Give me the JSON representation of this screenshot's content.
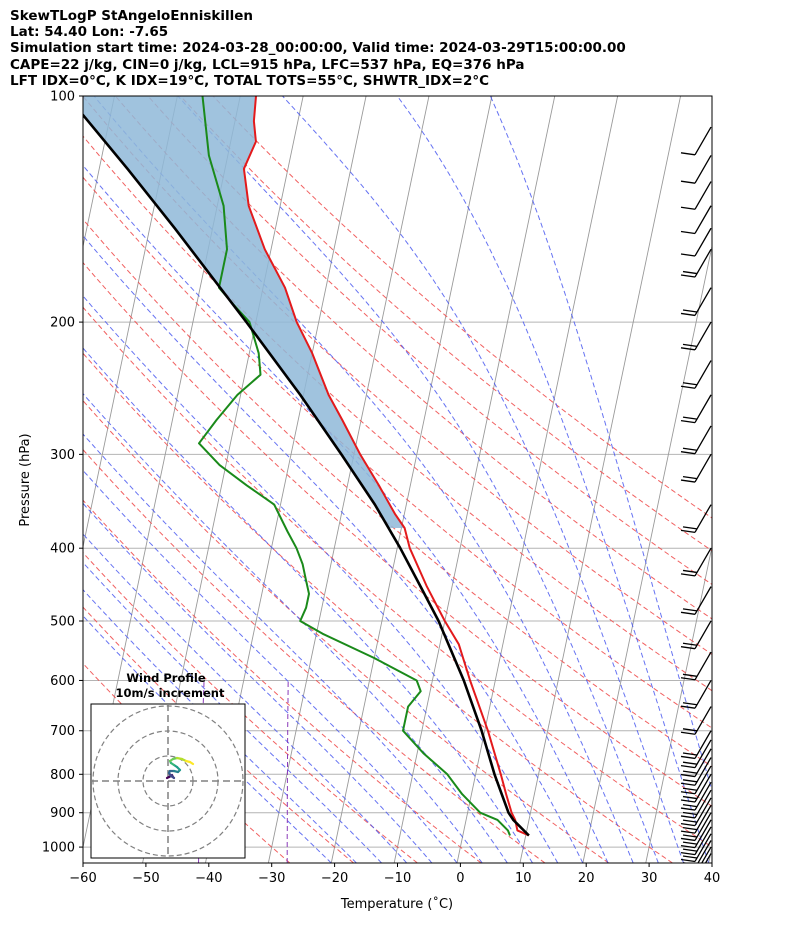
{
  "header": {
    "line1": "SkewTLogP StAngeloEnniskillen",
    "line2": "Lat: 54.40   Lon: -7.65",
    "line3": "Simulation start time: 2024-03-28_00:00:00, Valid time: 2024-03-29T15:00:00.00",
    "line4": "CAPE=22 j/kg, CIN=0 j/kg, LCL=915 hPa, LFC=537 hPa, EQ=376 hPa",
    "line5": "LFT IDX=0°C, K IDX=19°C, TOTAL TOTS=55°C, SHWTR_IDX=2°C"
  },
  "chart_data": {
    "type": "line",
    "chart_kind": "Skew-T log-P diagram",
    "xlabel": "Temperature (˚C)",
    "ylabel": "Pressure (hPa)",
    "xlim": [
      -60,
      40
    ],
    "ylim": [
      1050,
      100
    ],
    "y_scale": "log",
    "skew": true,
    "x_ticks": [
      "−60",
      "−50",
      "−40",
      "−30",
      "−20",
      "−10",
      "0",
      "10",
      "20",
      "30",
      "40"
    ],
    "y_ticks": [
      "100",
      "200",
      "300",
      "400",
      "500",
      "600",
      "700",
      "800",
      "900",
      "1000"
    ],
    "grid": true,
    "colors": {
      "temperature": "#e31a1c",
      "dewpoint": "#1a8a1a",
      "parcel": "#000000",
      "cape_fill": "#8fb9d8",
      "dry_adiabats": "#f05050",
      "moist_adiabats": "#4b5bf0",
      "mixing_ratio": "#8a3ab9",
      "isotherms": "#9a9a9a",
      "isobars": "#b4b4b4"
    },
    "series": [
      {
        "name": "",
        "role": "temperature",
        "pressure": [
          965,
          950,
          920,
          900,
          850,
          800,
          700,
          600,
          537,
          500,
          450,
          400,
          376,
          360,
          330,
          300,
          270,
          250,
          220,
          200,
          180,
          160,
          140,
          125,
          115,
          108,
          100
        ],
        "temperature": [
          10.5,
          8.5,
          7.8,
          7.0,
          5.5,
          4.0,
          0.5,
          -4.0,
          -7.0,
          -10.0,
          -14.0,
          -18.0,
          -19.5,
          -21.5,
          -25.0,
          -29.0,
          -33.0,
          -36.0,
          -40.0,
          -43.5,
          -46.5,
          -51.0,
          -55.0,
          -57.0,
          -56.0,
          -57.0,
          -57.5
        ]
      },
      {
        "name": "",
        "role": "dewpoint",
        "pressure": [
          965,
          950,
          920,
          900,
          850,
          800,
          750,
          700,
          650,
          620,
          600,
          560,
          520,
          500,
          480,
          460,
          440,
          420,
          400,
          380,
          350,
          330,
          310,
          290,
          270,
          250,
          235,
          220,
          200,
          190,
          180,
          160,
          140,
          120,
          100
        ],
        "temperature": [
          7.5,
          7.0,
          5.0,
          2.0,
          -1.5,
          -4.5,
          -9.0,
          -13.0,
          -13.0,
          -11.5,
          -12.5,
          -20.0,
          -29.0,
          -33.0,
          -32.5,
          -32.5,
          -33.5,
          -34.5,
          -36.0,
          -38.0,
          -41.0,
          -46.0,
          -51.0,
          -55.0,
          -53.0,
          -50.5,
          -47.5,
          -48.5,
          -51.0,
          -54.0,
          -57.0,
          -57.0,
          -59.0,
          -63.0,
          -66.0
        ]
      },
      {
        "name": "",
        "role": "parcel",
        "pressure": [
          965,
          920,
          900,
          850,
          800,
          700,
          600,
          500,
          450,
          400,
          350,
          300,
          250,
          200,
          150,
          125,
          100
        ],
        "temperature": [
          10.5,
          7.5,
          6.5,
          4.8,
          3.0,
          -0.5,
          -5.0,
          -11.0,
          -15.0,
          -19.5,
          -25.0,
          -32.0,
          -40.5,
          -51.5,
          -66.0,
          -75.5,
          -87.5
        ]
      }
    ],
    "inset": {
      "title": "Wind Profile",
      "subtitle": "10m/s increment",
      "rings": 3,
      "hodograph_u": [
        -0.1,
        0.1,
        0.3,
        0.4,
        0.5,
        0.6,
        0.3,
        0.1,
        0.2,
        0.6,
        1.0,
        1.2,
        0.9,
        0.6,
        0.3,
        0.2,
        0.5,
        0.9,
        1.4,
        1.8,
        2.2,
        2.5
      ],
      "hodograph_v": [
        0.3,
        0.4,
        0.5,
        0.6,
        0.4,
        0.3,
        0.5,
        0.8,
        1.0,
        1.0,
        0.9,
        1.1,
        1.4,
        1.6,
        1.8,
        2.0,
        2.2,
        2.3,
        2.2,
        2.0,
        1.9,
        1.7
      ]
    },
    "wind_barbs": {
      "pressure": [
        1020,
        1000,
        980,
        960,
        940,
        920,
        900,
        880,
        860,
        840,
        820,
        800,
        780,
        760,
        740,
        720,
        700,
        650,
        600,
        550,
        500,
        450,
        400,
        350,
        300,
        275,
        250,
        225,
        200,
        180,
        160,
        150,
        140,
        130,
        120,
        110
      ],
      "speed_kt": [
        10,
        15,
        15,
        15,
        15,
        15,
        15,
        15,
        15,
        20,
        20,
        20,
        20,
        20,
        20,
        15,
        15,
        15,
        15,
        15,
        15,
        15,
        15,
        15,
        15,
        15,
        15,
        15,
        15,
        15,
        15,
        10,
        10,
        10,
        10,
        10
      ]
    }
  }
}
